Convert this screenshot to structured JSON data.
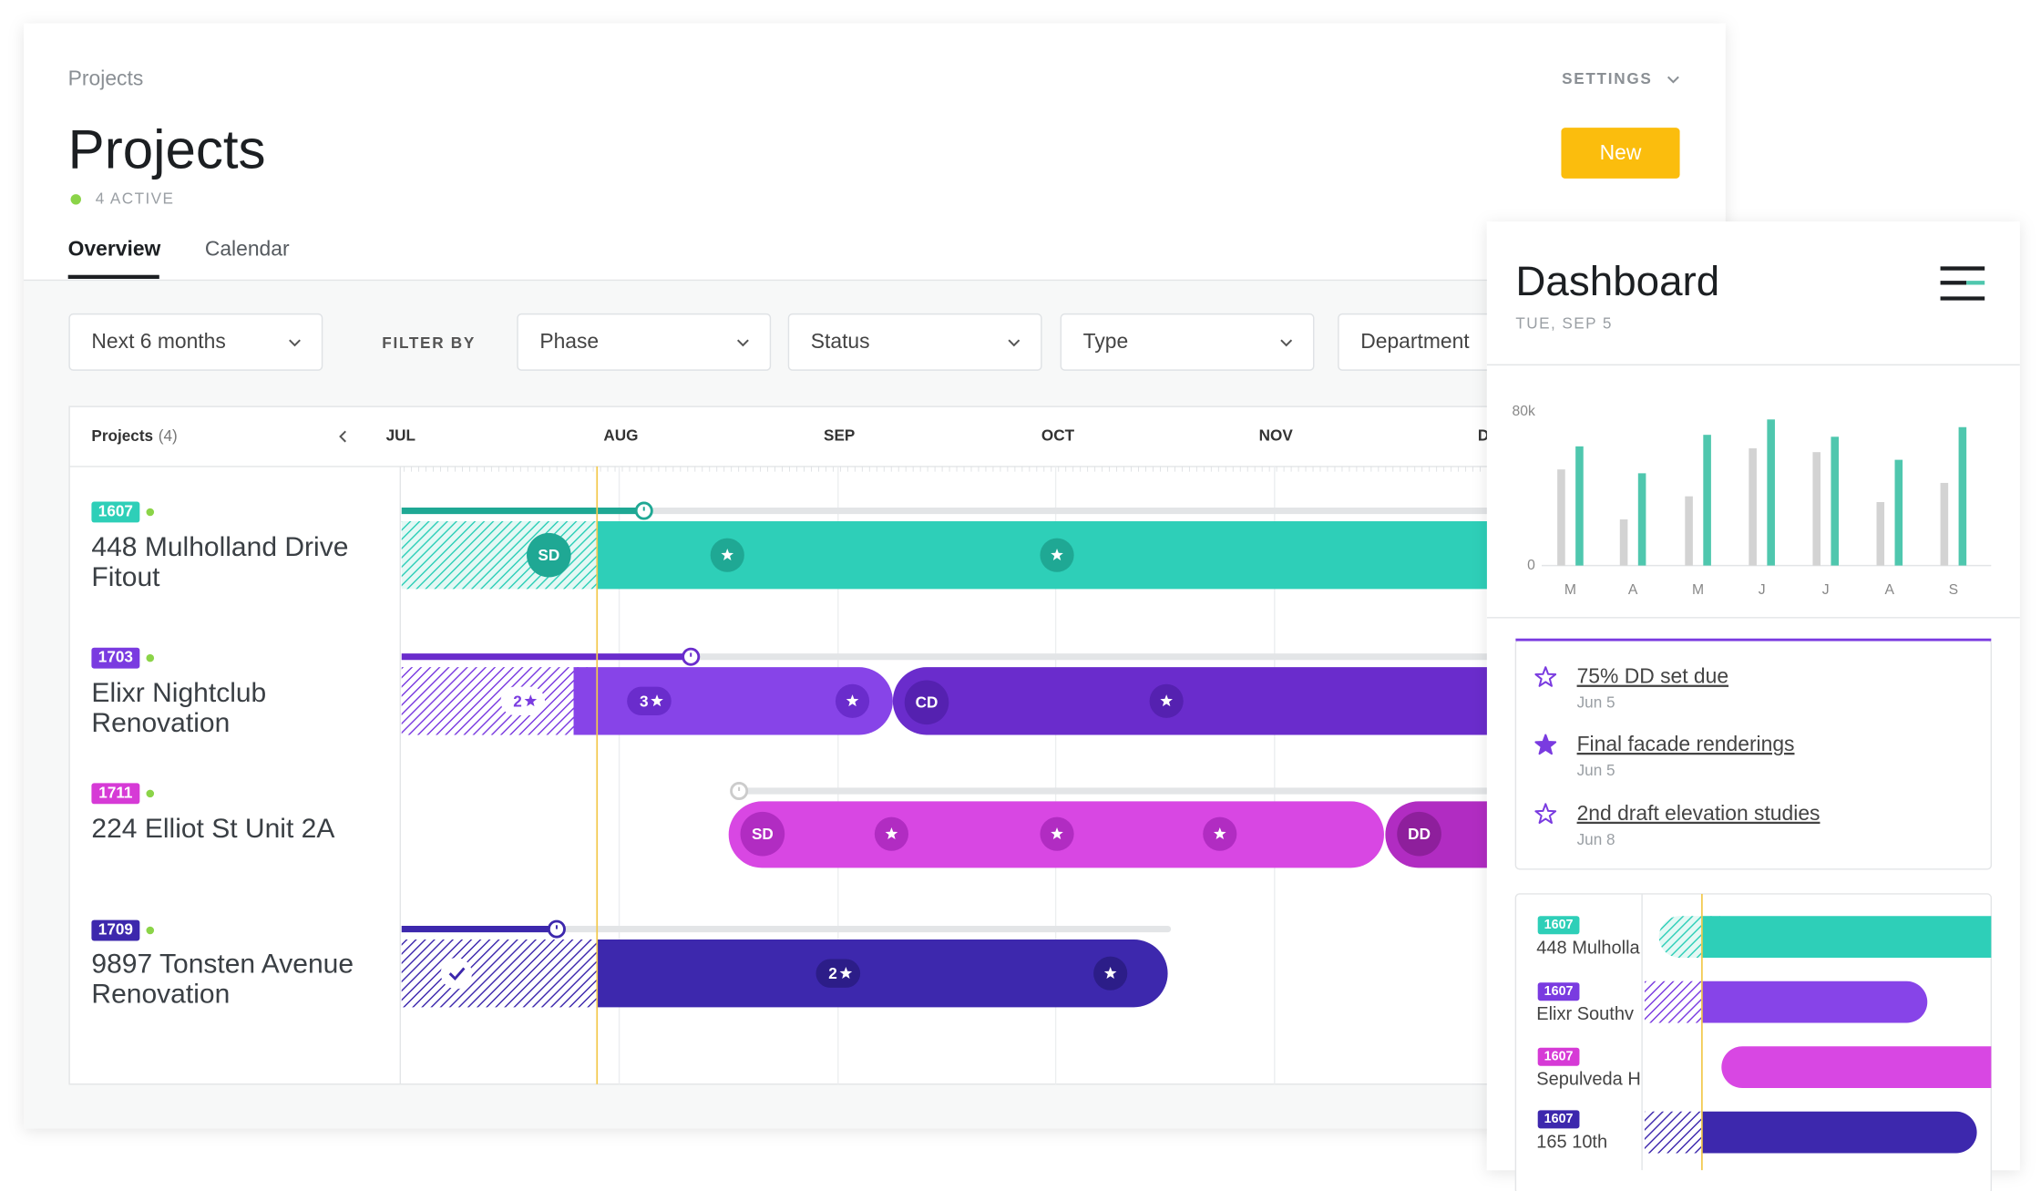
{
  "breadcrumb": "Projects",
  "title": "Projects",
  "status": "4 ACTIVE",
  "settings": "SETTINGS",
  "new_button": "New",
  "tabs": [
    "Overview",
    "Calendar"
  ],
  "range_filter": "Next 6 months",
  "filter_label": "FILTER BY",
  "filters": [
    "Phase",
    "Status",
    "Type",
    "Department"
  ],
  "timeline": {
    "header": "Projects",
    "count": "(4)",
    "months": [
      "JUL",
      "AUG",
      "SEP",
      "OCT",
      "NOV",
      "DEC"
    ],
    "projects": [
      {
        "id": "1607",
        "name": [
          "448 Mulholland Drive",
          "Fitout"
        ],
        "labels": [
          "SD"
        ]
      },
      {
        "id": "1703",
        "name": [
          "Elixr Nightclub",
          "Renovation"
        ],
        "labels": [
          "2",
          "3",
          "CD"
        ]
      },
      {
        "id": "1711",
        "name": [
          "224 Elliot St Unit 2A"
        ],
        "labels": [
          "SD",
          "DD"
        ]
      },
      {
        "id": "1709",
        "name": [
          "9897 Tonsten Avenue",
          "Renovation"
        ],
        "labels": [
          "2"
        ]
      }
    ]
  },
  "dashboard": {
    "title": "Dashboard",
    "date": "TUE, SEP 5",
    "chart_data": {
      "type": "bar",
      "categories": [
        "M",
        "A",
        "M",
        "J",
        "J",
        "A",
        "S"
      ],
      "series": [
        {
          "color": "#d3d3d3",
          "values": [
            50000,
            24000,
            36000,
            61000,
            59000,
            33000,
            43000
          ]
        },
        {
          "color": "#4fc7ae",
          "values": [
            62000,
            48000,
            68000,
            76000,
            67000,
            55000,
            72000
          ]
        }
      ],
      "ylim": [
        0,
        80000
      ],
      "yticks": [
        0,
        {
          "value": 80000,
          "label": "80k"
        }
      ]
    },
    "milestones": [
      {
        "title": "75% DD set due",
        "date": "Jun 5"
      },
      {
        "title": "Final facade renderings",
        "date": "Jun 5"
      },
      {
        "title": "2nd draft elevation studies",
        "date": "Jun 8"
      }
    ],
    "projects": [
      {
        "id": "1607",
        "name": "448 Mulholla"
      },
      {
        "id": "1607",
        "name": "Elixr Southv"
      },
      {
        "id": "1607",
        "name": "Sepulveda H"
      },
      {
        "id": "1607",
        "name": "165 10th"
      }
    ]
  }
}
